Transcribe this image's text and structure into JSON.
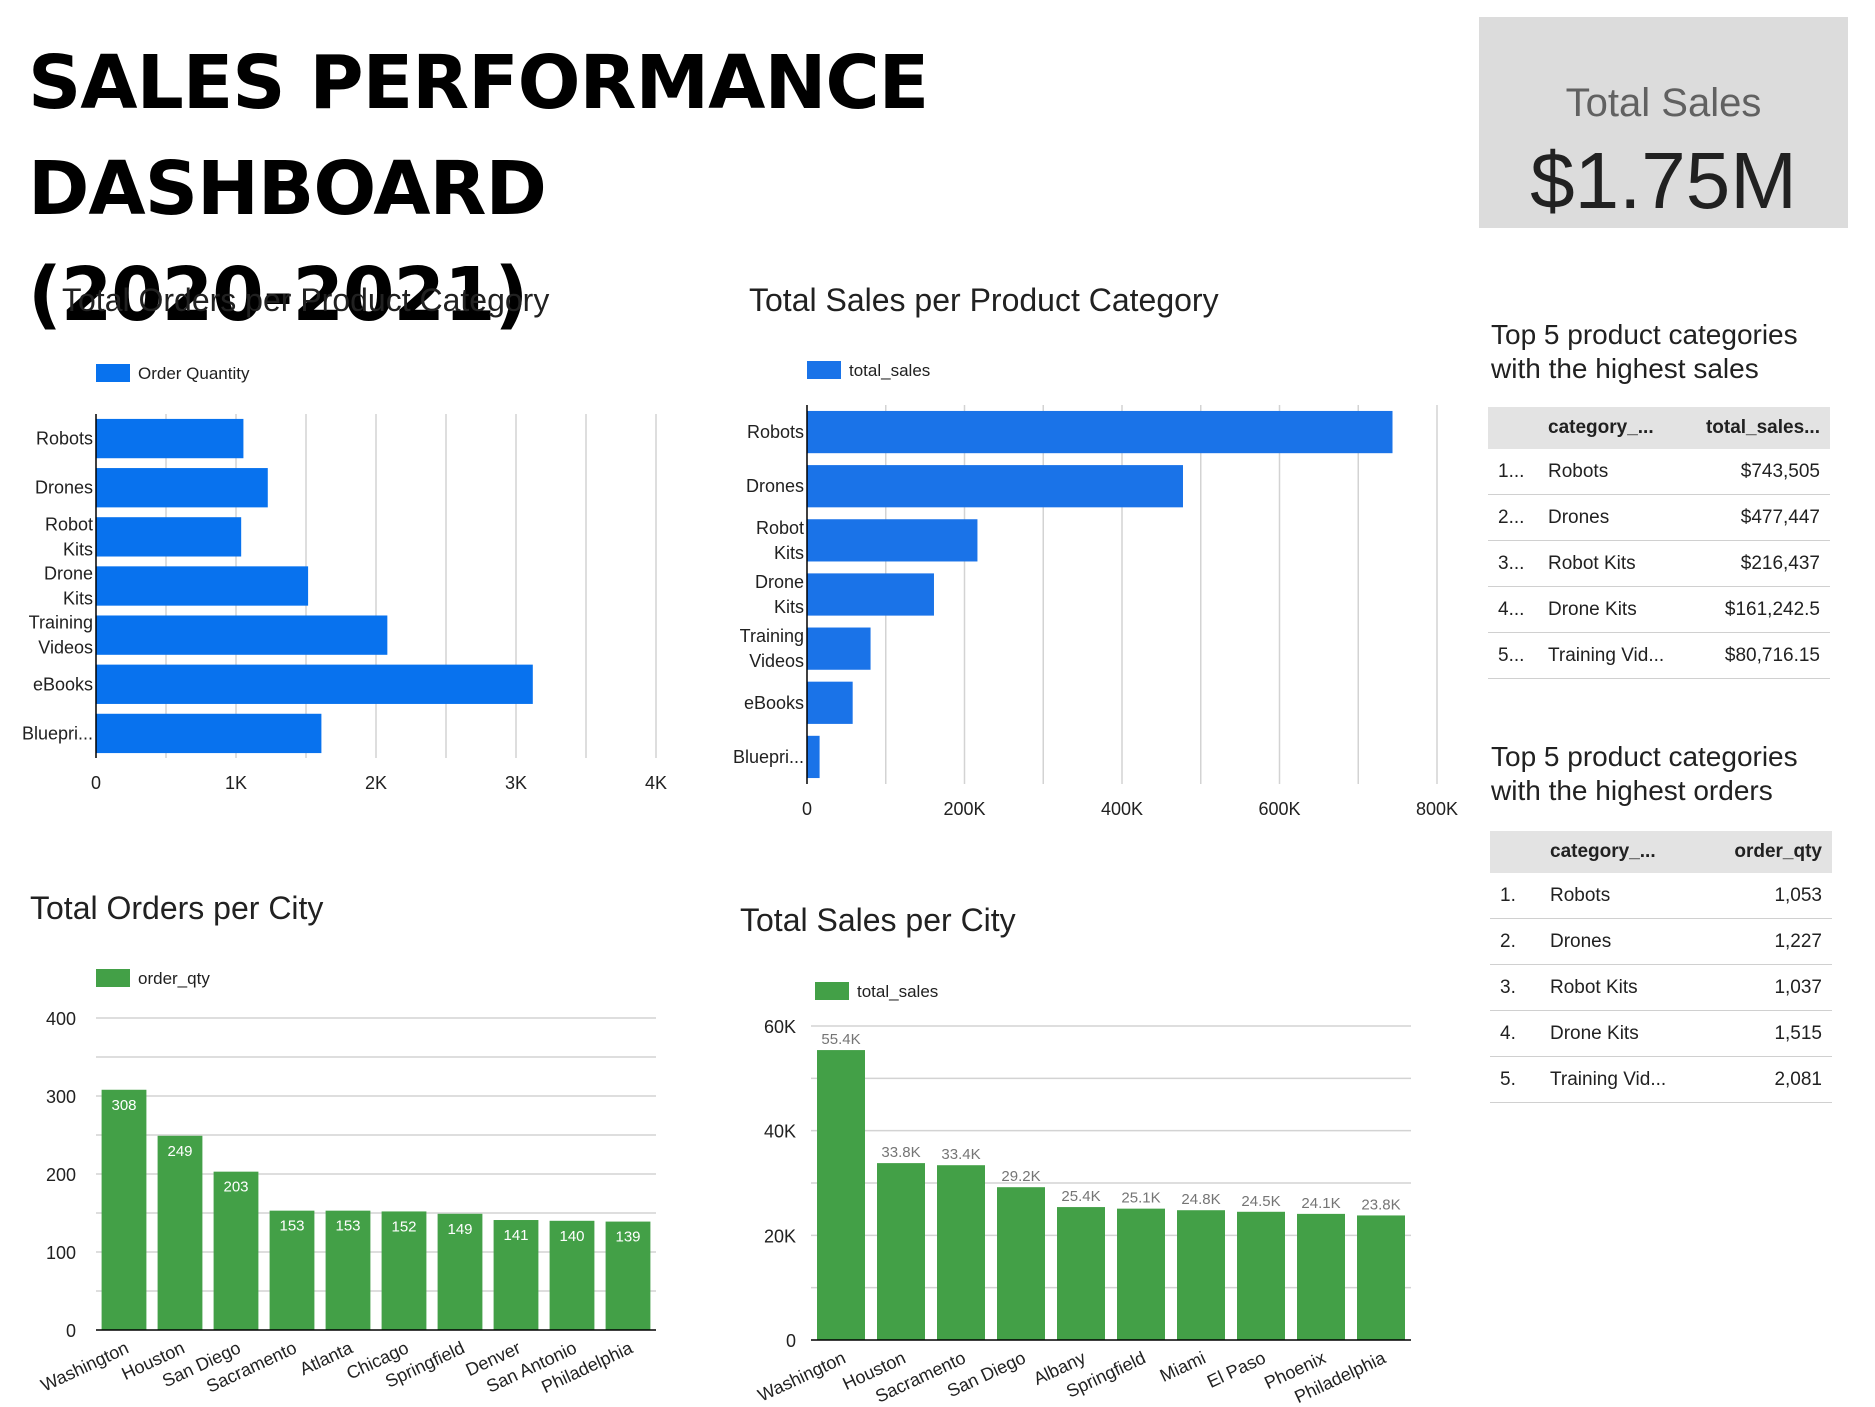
{
  "title_line1": "SALES PERFORMANCE DASHBOARD",
  "title_line2": "(2020-2021)",
  "kpi": {
    "label": "Total Sales",
    "value": "$1.75M"
  },
  "tables": [
    {
      "title_line1": "Top 5 product categories",
      "title_line2": "with the highest sales",
      "headers": [
        "category_...",
        "total_sales..."
      ],
      "rows": [
        {
          "rank": "1...",
          "category": "Robots",
          "value": "$743,505"
        },
        {
          "rank": "2...",
          "category": "Drones",
          "value": "$477,447"
        },
        {
          "rank": "3...",
          "category": "Robot Kits",
          "value": "$216,437"
        },
        {
          "rank": "4...",
          "category": "Drone Kits",
          "value": "$161,242.5"
        },
        {
          "rank": "5...",
          "category": "Training Vid...",
          "value": "$80,716.15"
        }
      ]
    },
    {
      "title_line1": "Top 5 product categories",
      "title_line2": "with the highest orders",
      "headers": [
        "category_...",
        "order_qty"
      ],
      "rows": [
        {
          "rank": "1.",
          "category": "Robots",
          "value": "1,053"
        },
        {
          "rank": "2.",
          "category": "Drones",
          "value": "1,227"
        },
        {
          "rank": "3.",
          "category": "Robot Kits",
          "value": "1,037"
        },
        {
          "rank": "4.",
          "category": "Drone Kits",
          "value": "1,515"
        },
        {
          "rank": "5.",
          "category": "Training Vid...",
          "value": "2,081"
        }
      ]
    }
  ],
  "colors": {
    "blue_orders": "#0872ee",
    "blue_sales": "#1a73e8",
    "green": "#43a047",
    "grid": "#d3d3d3",
    "axis": "#000000"
  },
  "chart_data": [
    {
      "type": "bar",
      "orientation": "horizontal",
      "title": "Total Orders per Product Category",
      "legend": "Order Quantity",
      "legend_position": "top-left",
      "categories": [
        "Robots",
        "Drones",
        "Robot Kits",
        "Drone Kits",
        "Training Videos",
        "eBooks",
        "Bluepri..."
      ],
      "category_lines": [
        [
          "Robots"
        ],
        [
          "Drones"
        ],
        [
          "Robot",
          "Kits"
        ],
        [
          "Drone",
          "Kits"
        ],
        [
          "Training",
          "Videos"
        ],
        [
          "eBooks"
        ],
        [
          "Bluepri..."
        ]
      ],
      "values": [
        1053,
        1227,
        1037,
        1515,
        2081,
        3120,
        1610
      ],
      "xlim": [
        0,
        4000
      ],
      "ticks": [
        0,
        1000,
        2000,
        3000,
        4000
      ],
      "tick_labels": [
        "0",
        "1K",
        "2K",
        "3K",
        "4K"
      ],
      "grid": true
    },
    {
      "type": "bar",
      "orientation": "horizontal",
      "title": "Total Sales per Product Category",
      "legend": "total_sales",
      "legend_position": "top-left",
      "categories": [
        "Robots",
        "Drones",
        "Robot Kits",
        "Drone Kits",
        "Training Videos",
        "eBooks",
        "Bluepri..."
      ],
      "category_lines": [
        [
          "Robots"
        ],
        [
          "Drones"
        ],
        [
          "Robot",
          "Kits"
        ],
        [
          "Drone",
          "Kits"
        ],
        [
          "Training",
          "Videos"
        ],
        [
          "eBooks"
        ],
        [
          "Bluepri..."
        ]
      ],
      "values": [
        743505,
        477447,
        216437,
        161242.5,
        80716.15,
        58000,
        16000
      ],
      "xlim": [
        0,
        800000
      ],
      "ticks": [
        0,
        200000,
        400000,
        600000,
        800000
      ],
      "tick_labels": [
        "0",
        "200K",
        "400K",
        "600K",
        "800K"
      ],
      "grid": true
    },
    {
      "type": "bar",
      "orientation": "vertical",
      "title": "Total Orders per City",
      "legend": "order_qty",
      "legend_position": "top-left",
      "categories": [
        "Washington",
        "Houston",
        "San Diego",
        "Sacramento",
        "Atlanta",
        "Chicago",
        "Springfield",
        "Denver",
        "San Antonio",
        "Philadelphia"
      ],
      "values": [
        308,
        249,
        203,
        153,
        153,
        152,
        149,
        141,
        140,
        139
      ],
      "data_labels": [
        "308",
        "249",
        "203",
        "153",
        "153",
        "152",
        "149",
        "141",
        "140",
        "139"
      ],
      "ylim": [
        0,
        400
      ],
      "ticks": [
        0,
        100,
        200,
        300,
        400
      ],
      "tick_labels": [
        "0",
        "100",
        "200",
        "300",
        "400"
      ],
      "grid": true
    },
    {
      "type": "bar",
      "orientation": "vertical",
      "title": "Total Sales per City",
      "legend": "total_sales",
      "legend_position": "top-left",
      "categories": [
        "Washington",
        "Houston",
        "Sacramento",
        "San Diego",
        "Albany",
        "Springfield",
        "Miami",
        "El Paso",
        "Phoenix",
        "Philadelphia"
      ],
      "values": [
        55400,
        33800,
        33400,
        29200,
        25400,
        25100,
        24800,
        24500,
        24100,
        23800
      ],
      "data_labels": [
        "55.4K",
        "33.8K",
        "33.4K",
        "29.2K",
        "25.4K",
        "25.1K",
        "24.8K",
        "24.5K",
        "24.1K",
        "23.8K"
      ],
      "ylim": [
        0,
        60000
      ],
      "ticks": [
        0,
        20000,
        40000,
        60000
      ],
      "tick_labels": [
        "0",
        "20K",
        "40K",
        "60K"
      ],
      "grid": true
    }
  ]
}
